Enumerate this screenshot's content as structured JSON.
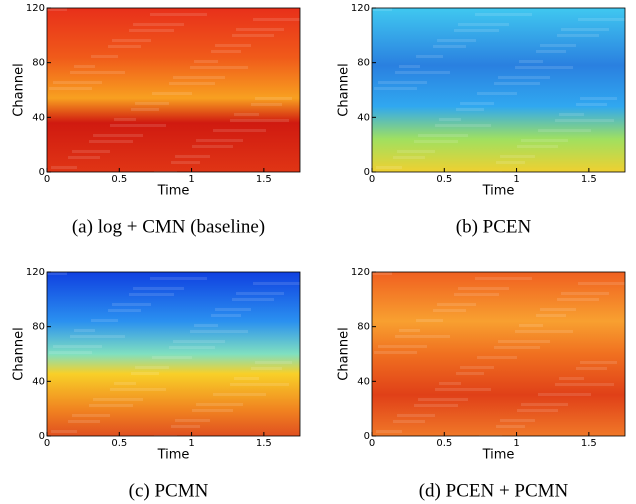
{
  "chart_data": [
    {
      "type": "heatmap",
      "caption": "(a) log + CMN (baseline)",
      "x_label": "Time",
      "y_label": "Channel",
      "xlim": [
        0,
        1.75
      ],
      "xticks": [
        0,
        0.5,
        1,
        1.5
      ],
      "ylim": [
        0,
        120
      ],
      "yticks": [
        0,
        40,
        80,
        120
      ]
    },
    {
      "type": "heatmap",
      "caption": "(b) PCEN",
      "x_label": "Time",
      "y_label": "Channel",
      "xlim": [
        0,
        1.75
      ],
      "xticks": [
        0,
        0.5,
        1,
        1.5
      ],
      "ylim": [
        0,
        120
      ],
      "yticks": [
        0,
        40,
        80,
        120
      ]
    },
    {
      "type": "heatmap",
      "caption": "(c) PCMN",
      "x_label": "Time",
      "y_label": "Channel",
      "xlim": [
        0,
        1.75
      ],
      "xticks": [
        0,
        0.5,
        1,
        1.5
      ],
      "ylim": [
        0,
        120
      ],
      "yticks": [
        0,
        40,
        80,
        120
      ]
    },
    {
      "type": "heatmap",
      "caption": "(d) PCEN + PCMN",
      "x_label": "Time",
      "y_label": "Channel",
      "xlim": [
        0,
        1.75
      ],
      "xticks": [
        0,
        0.5,
        1,
        1.5
      ],
      "ylim": [
        0,
        120
      ],
      "yticks": [
        0,
        40,
        80,
        120
      ]
    }
  ]
}
